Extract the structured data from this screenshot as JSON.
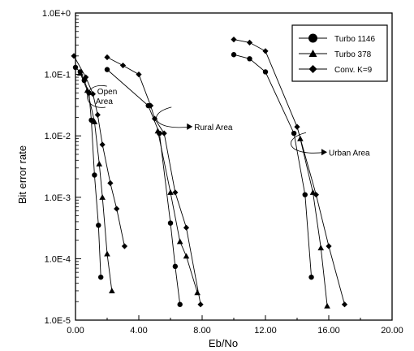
{
  "chart_data": {
    "type": "line",
    "title": "",
    "xlabel": "Eb/No",
    "ylabel": "Bit error rate",
    "y_scale": "log",
    "xlim": [
      0,
      20
    ],
    "ylim": [
      1e-05,
      1
    ],
    "x_tick_labels": [
      "0.00",
      "4.00",
      "8.00",
      "12.00",
      "16.00",
      "20.00"
    ],
    "x_tick_values": [
      0,
      4,
      8,
      12,
      16,
      20
    ],
    "y_tick_labels": [
      "1.0E-5",
      "1.0E-4",
      "1.0E-3",
      "1.0E-2",
      "1.0E-1",
      "1.0E+0"
    ],
    "y_tick_values": [
      1e-05,
      0.0001,
      0.001,
      0.01,
      0.1,
      1
    ],
    "grid": false,
    "legend_position": "top-right",
    "series": [
      {
        "name": "Turbo 1146",
        "marker": "circle",
        "curves": [
          [
            [
              0.0,
              0.13
            ],
            [
              0.3,
              0.11
            ],
            [
              0.55,
              0.08
            ],
            [
              0.85,
              0.05
            ],
            [
              1.0,
              0.018
            ],
            [
              1.2,
              0.0023
            ],
            [
              1.45,
              0.00035
            ],
            [
              1.6,
              5e-05
            ]
          ],
          [
            [
              2.0,
              0.12
            ],
            [
              4.6,
              0.031
            ],
            [
              5.3,
              0.011
            ],
            [
              6.0,
              0.00038
            ],
            [
              6.3,
              7.5e-05
            ],
            [
              6.6,
              1.8e-05
            ]
          ],
          [
            [
              10.0,
              0.21
            ],
            [
              11.0,
              0.18
            ],
            [
              12.0,
              0.11
            ],
            [
              13.8,
              0.011
            ],
            [
              14.5,
              0.0011
            ],
            [
              14.9,
              5e-05
            ]
          ]
        ]
      },
      {
        "name": "Turbo 378",
        "marker": "triangle",
        "curves": [
          [
            [
              0.3,
              0.105
            ],
            [
              0.75,
              0.055
            ],
            [
              1.2,
              0.017
            ],
            [
              1.5,
              0.0035
            ],
            [
              1.7,
              0.001
            ],
            [
              2.0,
              0.00012
            ],
            [
              2.3,
              3e-05
            ]
          ],
          [
            [
              5.2,
              0.012
            ],
            [
              6.0,
              0.0012
            ],
            [
              6.6,
              0.00019
            ],
            [
              7.0,
              0.00011
            ],
            [
              7.7,
              2.8e-05
            ]
          ],
          [
            [
              14.2,
              0.009
            ],
            [
              15.0,
              0.0012
            ],
            [
              15.5,
              0.00015
            ],
            [
              15.9,
              1.7e-05
            ]
          ]
        ]
      },
      {
        "name": "Conv. K=9",
        "marker": "diamond",
        "curves": [
          [
            [
              -0.1,
              0.2
            ],
            [
              0.65,
              0.09
            ],
            [
              1.1,
              0.048
            ],
            [
              1.4,
              0.022
            ],
            [
              1.7,
              0.0072
            ],
            [
              2.2,
              0.0017
            ],
            [
              2.6,
              0.00065
            ],
            [
              3.1,
              0.00016
            ]
          ],
          [
            [
              2.0,
              0.19
            ],
            [
              3.0,
              0.14
            ],
            [
              4.0,
              0.1
            ],
            [
              4.75,
              0.031
            ],
            [
              5.0,
              0.019
            ],
            [
              5.6,
              0.011
            ],
            [
              6.3,
              0.0012
            ],
            [
              7.0,
              0.00032
            ],
            [
              7.9,
              1.8e-05
            ]
          ],
          [
            [
              10.0,
              0.37
            ],
            [
              11.0,
              0.33
            ],
            [
              12.0,
              0.24
            ],
            [
              14.0,
              0.014
            ],
            [
              15.2,
              0.0011
            ],
            [
              16.0,
              0.00016
            ],
            [
              17.0,
              1.8e-05
            ]
          ]
        ]
      }
    ],
    "annotations": [
      {
        "text": "Open Area",
        "x": 2.4,
        "y": 0.042
      },
      {
        "text": "Rural Area",
        "x": 7.5,
        "y": 0.0125
      },
      {
        "text": "Urban Area",
        "x": 16.0,
        "y": 0.0048
      }
    ]
  }
}
